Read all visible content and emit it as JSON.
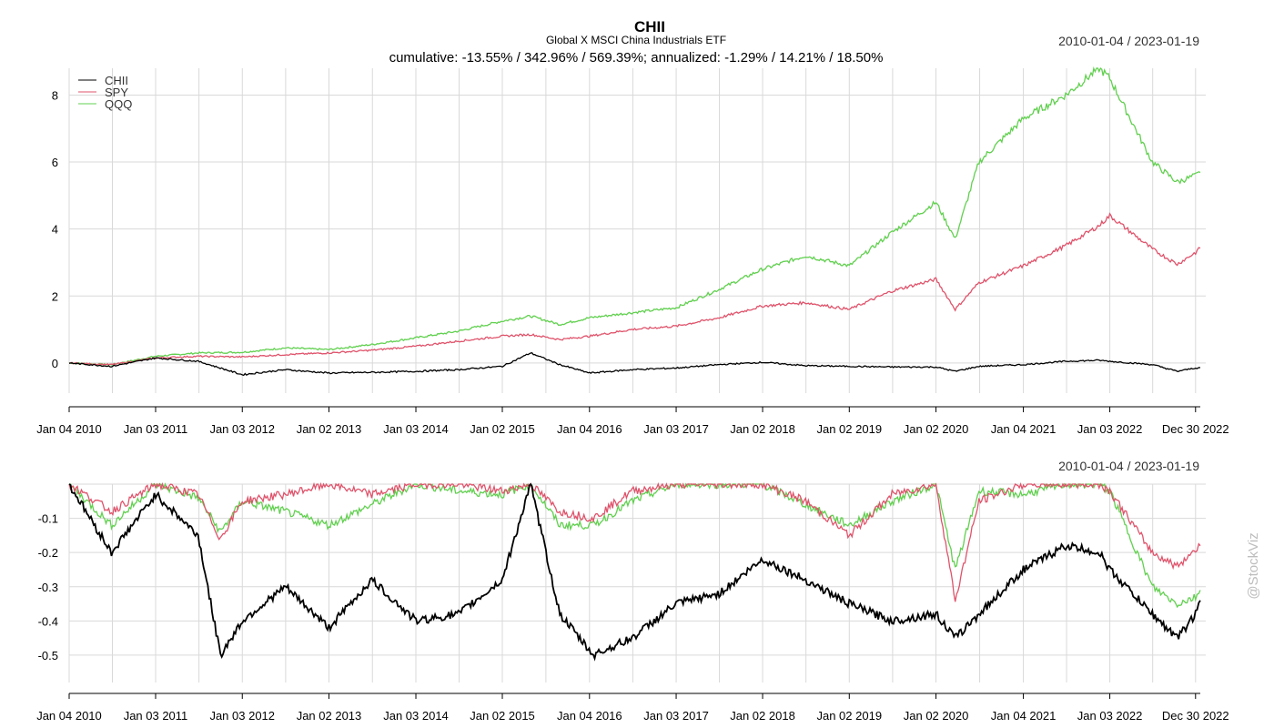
{
  "header": {
    "title": "CHII",
    "subtitle": "Global X MSCI China Industrials ETF",
    "metrics": "cumulative: -13.55% / 342.96% / 569.39%; annualized: -1.29% / 14.21% / 18.50%",
    "date_range": "2010-01-04 / 2023-01-19"
  },
  "watermark": "@StockViz",
  "colors": {
    "CHII": "#000000",
    "SPY": "#DF536B",
    "QQQ": "#61D04F",
    "grid": "#d9d9d9"
  },
  "x_tick_labels": [
    "Jan 04 2010",
    "Jan 03 2011",
    "Jan 03 2012",
    "Jan 02 2013",
    "Jan 03 2014",
    "Jan 02 2015",
    "Jan 04 2016",
    "Jan 03 2017",
    "Jan 02 2018",
    "Jan 02 2019",
    "Jan 02 2020",
    "Jan 04 2021",
    "Jan 03 2022",
    "Dec 30 2022"
  ],
  "chart_data": [
    {
      "type": "line",
      "title": "CHII",
      "subtitle": "Global X MSCI China Industrials ETF",
      "date_range": "2010-01-04 / 2023-01-19",
      "x": [
        "2010-01-04",
        "2010-07-01",
        "2011-01-03",
        "2011-07-01",
        "2012-01-03",
        "2012-07-02",
        "2013-01-02",
        "2013-07-01",
        "2014-01-03",
        "2014-07-01",
        "2015-01-02",
        "2015-05-01",
        "2015-09-01",
        "2016-01-04",
        "2016-07-01",
        "2017-01-03",
        "2017-07-03",
        "2018-01-02",
        "2018-07-02",
        "2019-01-02",
        "2019-07-01",
        "2020-01-02",
        "2020-03-23",
        "2020-07-01",
        "2021-01-04",
        "2021-07-01",
        "2021-11-19",
        "2022-01-03",
        "2022-07-01",
        "2022-10-14",
        "2022-12-30",
        "2023-01-19"
      ],
      "series": [
        {
          "name": "CHII",
          "values": [
            0.0,
            -0.1,
            0.15,
            0.05,
            -0.35,
            -0.2,
            -0.3,
            -0.28,
            -0.25,
            -0.2,
            -0.1,
            0.3,
            -0.05,
            -0.3,
            -0.2,
            -0.15,
            -0.05,
            0.02,
            -0.08,
            -0.1,
            -0.12,
            -0.12,
            -0.25,
            -0.1,
            -0.05,
            0.05,
            0.08,
            0.05,
            -0.05,
            -0.25,
            -0.15,
            -0.14
          ]
        },
        {
          "name": "SPY",
          "values": [
            0.0,
            -0.05,
            0.15,
            0.2,
            0.18,
            0.25,
            0.3,
            0.38,
            0.5,
            0.65,
            0.8,
            0.85,
            0.7,
            0.8,
            1.0,
            1.1,
            1.35,
            1.7,
            1.8,
            1.6,
            2.15,
            2.5,
            1.6,
            2.4,
            2.9,
            3.5,
            4.1,
            4.4,
            3.4,
            2.95,
            3.3,
            3.43
          ]
        },
        {
          "name": "QQQ",
          "values": [
            0.0,
            -0.05,
            0.2,
            0.3,
            0.32,
            0.45,
            0.4,
            0.55,
            0.75,
            0.95,
            1.25,
            1.4,
            1.15,
            1.35,
            1.5,
            1.65,
            2.2,
            2.8,
            3.2,
            2.9,
            3.9,
            4.8,
            3.7,
            6.0,
            7.3,
            8.0,
            8.8,
            8.5,
            6.0,
            5.4,
            5.6,
            5.69
          ]
        }
      ],
      "ylim": [
        -0.9,
        8.8
      ],
      "y_ticks": [
        0,
        2,
        4,
        6,
        8
      ],
      "grid": true,
      "legend": "top-left"
    },
    {
      "type": "line",
      "date_range": "2010-01-04 / 2023-01-19",
      "x": [
        "2010-01-04",
        "2010-07-01",
        "2011-01-03",
        "2011-07-01",
        "2011-10-03",
        "2012-01-03",
        "2012-07-02",
        "2013-01-02",
        "2013-07-01",
        "2014-01-03",
        "2014-07-01",
        "2015-01-02",
        "2015-05-01",
        "2015-09-01",
        "2016-01-20",
        "2016-07-01",
        "2017-01-03",
        "2017-07-03",
        "2018-01-02",
        "2018-07-02",
        "2019-01-02",
        "2019-07-01",
        "2020-01-02",
        "2020-03-23",
        "2020-07-01",
        "2021-01-04",
        "2021-07-01",
        "2021-11-19",
        "2022-01-03",
        "2022-07-01",
        "2022-10-14",
        "2022-12-30",
        "2023-01-19"
      ],
      "series": [
        {
          "name": "CHII",
          "values": [
            0.0,
            -0.2,
            -0.03,
            -0.15,
            -0.5,
            -0.4,
            -0.3,
            -0.42,
            -0.28,
            -0.4,
            -0.38,
            -0.28,
            0.0,
            -0.38,
            -0.5,
            -0.45,
            -0.35,
            -0.32,
            -0.22,
            -0.28,
            -0.35,
            -0.4,
            -0.38,
            -0.45,
            -0.38,
            -0.25,
            -0.18,
            -0.2,
            -0.25,
            -0.38,
            -0.45,
            -0.38,
            -0.34
          ]
        },
        {
          "name": "SPY",
          "values": [
            0.0,
            -0.08,
            0.0,
            -0.03,
            -0.16,
            -0.05,
            -0.03,
            0.0,
            -0.03,
            0.0,
            0.0,
            -0.02,
            0.0,
            -0.08,
            -0.1,
            -0.02,
            0.0,
            0.0,
            0.0,
            -0.05,
            -0.15,
            -0.03,
            0.0,
            -0.34,
            -0.05,
            0.0,
            0.0,
            0.0,
            -0.02,
            -0.2,
            -0.24,
            -0.19,
            -0.18
          ]
        },
        {
          "name": "QQQ",
          "values": [
            0.0,
            -0.12,
            0.0,
            -0.04,
            -0.14,
            -0.05,
            -0.08,
            -0.12,
            -0.06,
            0.0,
            -0.02,
            -0.03,
            0.0,
            -0.12,
            -0.12,
            -0.05,
            0.0,
            0.0,
            0.0,
            -0.06,
            -0.12,
            -0.05,
            0.0,
            -0.25,
            -0.02,
            -0.03,
            0.0,
            0.0,
            -0.02,
            -0.3,
            -0.35,
            -0.33,
            -0.31
          ]
        }
      ],
      "ylim": [
        -0.58,
        0.0
      ],
      "y_ticks": [
        -0.1,
        -0.2,
        -0.3,
        -0.4,
        -0.5
      ],
      "y_tick_labels": [
        "-0.1",
        "-0.2",
        "-0.3",
        "-0.4",
        "-0.5"
      ],
      "grid": true
    }
  ]
}
